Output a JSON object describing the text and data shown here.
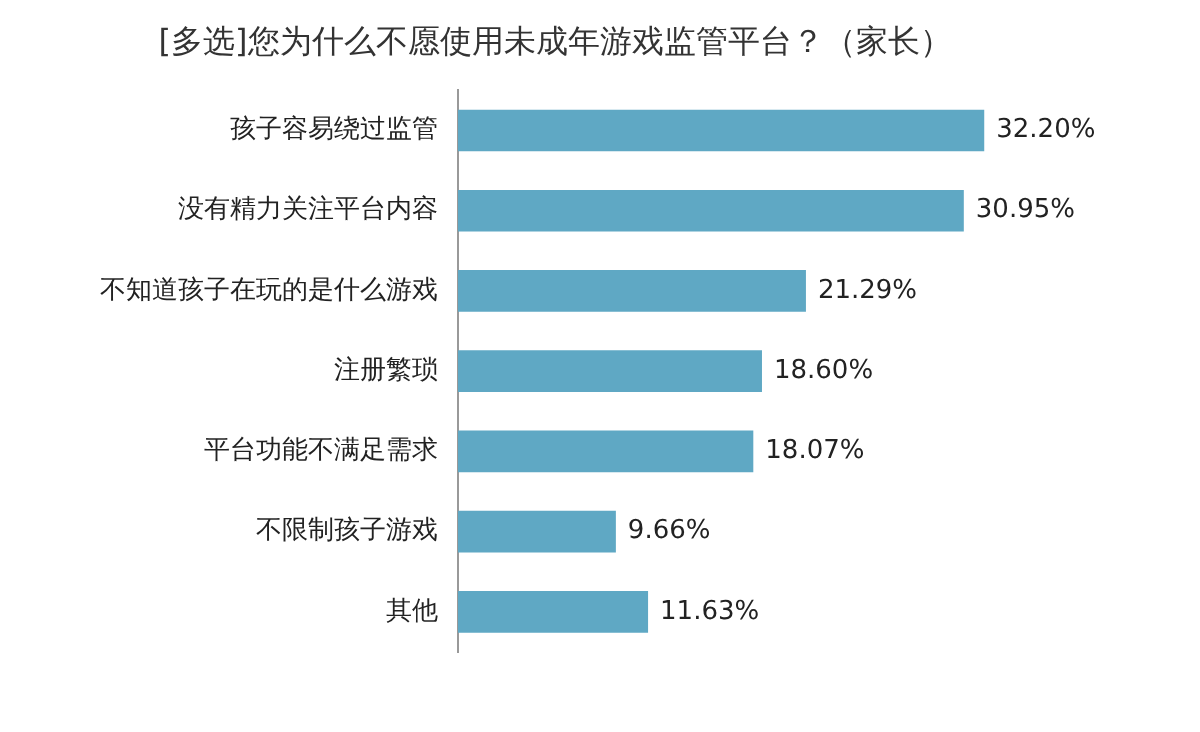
{
  "chart_data": {
    "type": "bar",
    "orientation": "horizontal",
    "title": "[多选]您为什么不愿使用未成年游戏监管平台？（家长）",
    "categories": [
      "孩子容易绕过监管",
      "没有精力关注平台内容",
      "不知道孩子在玩的是什么游戏",
      "注册繁琐",
      "平台功能不满足需求",
      "不限制孩子游戏",
      "其他"
    ],
    "values": [
      32.2,
      30.95,
      21.29,
      18.6,
      18.07,
      9.66,
      11.63
    ],
    "value_labels": [
      "32.20%",
      "30.95%",
      "21.29%",
      "18.60%",
      "18.07%",
      "9.66%",
      "11.63%"
    ],
    "color": "#5fa8c4",
    "legend": false
  }
}
